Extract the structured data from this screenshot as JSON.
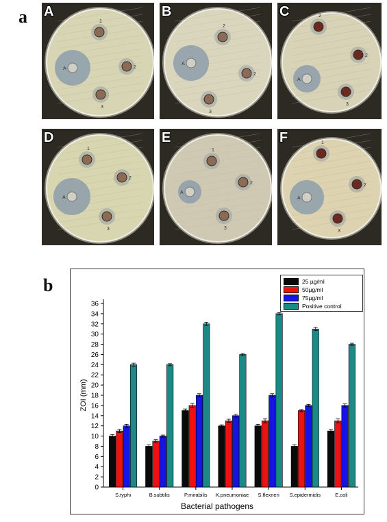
{
  "figure": {
    "panel_a_label": "a",
    "panel_b_label": "b",
    "plates": [
      {
        "label": "A",
        "wells": [
          "1",
          "2",
          "3",
          "A"
        ],
        "large_zone_radius": 26
      },
      {
        "label": "B",
        "wells": [
          "2",
          "2",
          "3",
          "A"
        ],
        "large_zone_radius": 26
      },
      {
        "label": "C",
        "wells": [
          "2",
          "2",
          "3",
          "A"
        ],
        "large_zone_radius": 20
      },
      {
        "label": "D",
        "wells": [
          "1",
          "2",
          "3",
          "A"
        ],
        "large_zone_radius": 27
      },
      {
        "label": "E",
        "wells": [
          "1",
          "2",
          "3",
          "A"
        ],
        "large_zone_radius": 17
      },
      {
        "label": "F",
        "wells": [
          "1",
          "2",
          "3",
          "A"
        ],
        "large_zone_radius": 25
      }
    ]
  },
  "chart_data": {
    "type": "bar",
    "xlabel": "Bacterial pathogens",
    "ylabel": "ZOI (mm)",
    "ylim": [
      0,
      36
    ],
    "yticks": [
      0,
      2,
      4,
      6,
      8,
      10,
      12,
      14,
      16,
      18,
      20,
      22,
      24,
      26,
      28,
      30,
      32,
      34,
      36
    ],
    "categories": [
      "S.typhi",
      "B.subtilis",
      "P.mirabilis",
      "K.pneumoniae",
      "S.flexneri",
      "S.epidermidis",
      "E.coli"
    ],
    "legend_position": "top-right",
    "grid": false,
    "series": [
      {
        "name": "25 µg/ml",
        "color": "#0a0a0a",
        "values": [
          10,
          8,
          15,
          12,
          12,
          8,
          11
        ],
        "errors": [
          0.3,
          0.3,
          0.3,
          0.2,
          0.3,
          0.3,
          0.3
        ]
      },
      {
        "name": "50µg/ml",
        "color": "#ee1111",
        "values": [
          11,
          9,
          16,
          13,
          13,
          15,
          13
        ],
        "errors": [
          0.3,
          0.3,
          0.4,
          0.3,
          0.4,
          0.2,
          0.4
        ]
      },
      {
        "name": "75µg/ml",
        "color": "#1414e6",
        "values": [
          12,
          10,
          18,
          14,
          18,
          16,
          16
        ],
        "errors": [
          0.3,
          0.2,
          0.3,
          0.3,
          0.3,
          0.2,
          0.3
        ]
      },
      {
        "name": "Positive control",
        "color": "#1a8a86",
        "values": [
          24,
          24,
          32,
          26,
          34,
          31,
          28
        ],
        "errors": [
          0.3,
          0.2,
          0.3,
          0.2,
          0.2,
          0.3,
          0.2
        ]
      }
    ]
  }
}
